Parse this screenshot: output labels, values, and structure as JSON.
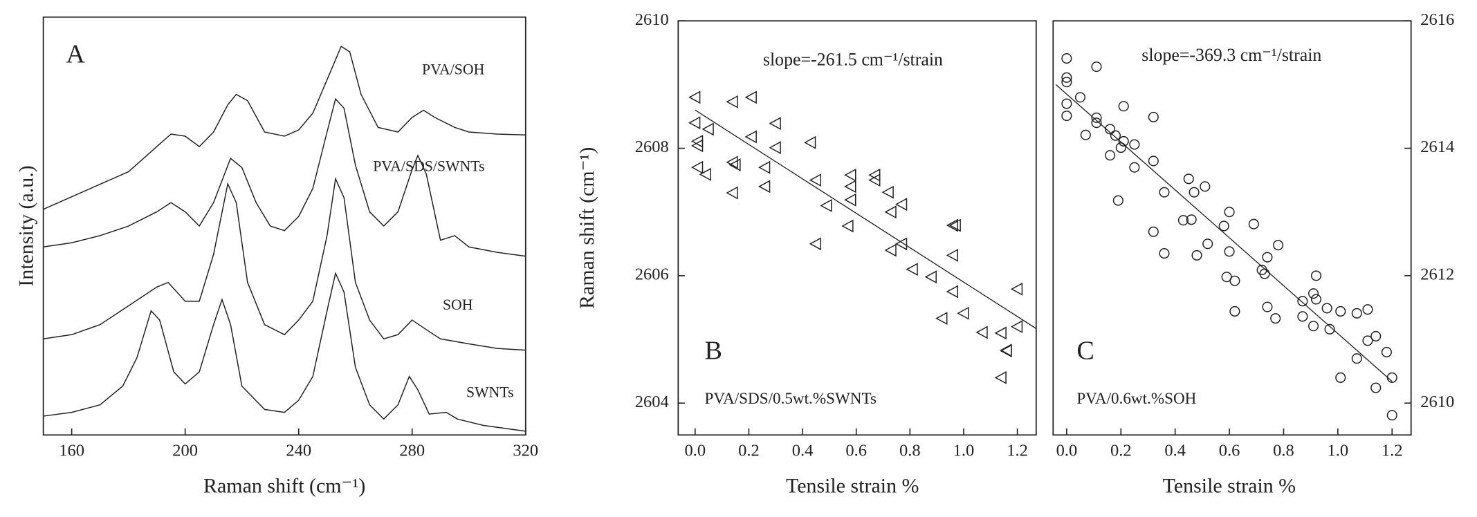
{
  "chart_data": [
    {
      "type": "line",
      "panel_label": "A",
      "xlabel": "Raman shift (cm⁻¹)",
      "ylabel": "Intensity (a.u.)",
      "xlim": [
        150,
        320
      ],
      "xticks": [
        160,
        200,
        240,
        280,
        320
      ],
      "ylim": [
        0,
        100
      ],
      "color": "#222222",
      "series": [
        {
          "name": "PVA/SOH",
          "x": [
            150,
            160,
            170,
            180,
            190,
            195,
            200,
            205,
            210,
            215,
            218,
            222,
            228,
            235,
            240,
            245,
            250,
            255,
            258,
            262,
            268,
            275,
            280,
            284,
            288,
            295,
            300,
            310,
            320
          ],
          "values": [
            54,
            57,
            60,
            63,
            69,
            72,
            71.5,
            69,
            72.5,
            79,
            81.5,
            80,
            72.5,
            71.5,
            73,
            77,
            85,
            93,
            91.7,
            81.5,
            73.6,
            72.5,
            76,
            77.7,
            76,
            73.6,
            72.5,
            72,
            71.8
          ]
        },
        {
          "name": "PVA/SDS/SWNTs",
          "x": [
            150,
            160,
            170,
            180,
            190,
            195,
            200,
            205,
            210,
            216,
            220,
            225,
            230,
            235,
            240,
            245,
            250,
            253,
            256,
            260,
            265,
            270,
            275,
            280,
            282,
            285,
            290,
            295,
            300,
            310,
            320
          ],
          "values": [
            45,
            46,
            47.7,
            50,
            53.4,
            55.6,
            53.4,
            50,
            55.6,
            66.2,
            64,
            55.6,
            50,
            48.9,
            52.3,
            59,
            72.5,
            80.4,
            78.2,
            64.6,
            53.4,
            50,
            53.4,
            63.5,
            66.9,
            62.4,
            46.6,
            47.7,
            45,
            43.7,
            42.8
          ]
        },
        {
          "name": "SOH",
          "x": [
            150,
            160,
            170,
            180,
            190,
            194,
            200,
            205,
            210,
            215,
            218,
            222,
            228,
            235,
            240,
            245,
            250,
            253,
            256,
            260,
            265,
            270,
            275,
            280,
            285,
            290,
            300,
            310,
            320
          ],
          "values": [
            23,
            24,
            26.4,
            30.9,
            35.4,
            36.5,
            32,
            32,
            43.2,
            60.1,
            55.6,
            36.5,
            26.4,
            24,
            27.5,
            32,
            47.7,
            61.3,
            56.8,
            36.5,
            27.5,
            23,
            24,
            27.5,
            25.2,
            23,
            21.8,
            20.7,
            20.3
          ]
        },
        {
          "name": "SWNTs",
          "x": [
            150,
            160,
            170,
            178,
            183,
            188,
            191,
            196,
            200,
            205,
            210,
            213,
            216,
            220,
            228,
            235,
            240,
            245,
            250,
            253,
            256,
            260,
            265,
            270,
            275,
            279,
            282,
            286,
            292,
            296,
            305,
            320
          ],
          "values": [
            4.5,
            5.4,
            7.2,
            11.7,
            18.5,
            29.7,
            27.5,
            15.1,
            12.2,
            15.1,
            26.4,
            32.4,
            26.4,
            11.7,
            6.1,
            5.4,
            8.3,
            14,
            29.7,
            38.7,
            34.2,
            16.2,
            7.2,
            3.8,
            7.2,
            14,
            10.8,
            5,
            5.4,
            3.8,
            2.3,
            0.9
          ]
        }
      ]
    },
    {
      "type": "scatter",
      "panel_label": "B",
      "sample": "PVA/SDS/0.5wt.%SWNTs",
      "slope": "slope=-261.5 cm⁻¹/strain",
      "xlabel": "Tensile strain %",
      "ylabel": "Raman shift (cm⁻¹)",
      "marker": "triangle",
      "color": "#222222",
      "yaxis_side": "left",
      "xlim": [
        -0.063,
        1.27
      ],
      "xticks": [
        {
          "value": 0,
          "label": "0.0"
        },
        0.2,
        0.4,
        0.6,
        0.8,
        {
          "value": 1,
          "label": "1.0"
        },
        1.2
      ],
      "ylim": [
        2603.5,
        2610
      ],
      "yticks": [
        2604,
        2606,
        2608,
        2610
      ],
      "x": [
        0,
        0,
        0.01,
        0.01,
        0.01,
        0.04,
        0.05,
        0.14,
        0.21,
        0.14,
        0.15,
        0.14,
        0.21,
        0.26,
        0.26,
        0.3,
        0.3,
        0.43,
        0.45,
        0.45,
        0.49,
        0.58,
        0.58,
        0.58,
        0.57,
        0.67,
        0.67,
        0.72,
        0.73,
        0.73,
        0.77,
        0.77,
        0.81,
        0.88,
        0.92,
        0.96,
        0.96,
        0.97,
        0.96,
        1,
        1.07,
        1.14,
        1.14,
        1.16,
        1.16,
        1.2,
        1.2
      ],
      "values": [
        2608.8,
        2608.4,
        2608.11,
        2608.04,
        2607.7,
        2607.59,
        2608.3,
        2608.73,
        2608.8,
        2607.78,
        2607.74,
        2607.3,
        2608.18,
        2607.7,
        2607.4,
        2608.39,
        2608.01,
        2608.09,
        2607.5,
        2606.5,
        2607.1,
        2607.58,
        2607.4,
        2607.19,
        2606.78,
        2607.58,
        2607.5,
        2607.31,
        2606.4,
        2607,
        2607.12,
        2606.5,
        2606.1,
        2605.98,
        2605.33,
        2606.79,
        2606.32,
        2606.79,
        2605.75,
        2605.41,
        2605.11,
        2605.1,
        2604.4,
        2604.83,
        2604.82,
        2605.79,
        2605.2
      ],
      "fit_line": {
        "x": [
          0,
          1.27
        ],
        "y": [
          2608.6,
          2605.17
        ]
      }
    },
    {
      "type": "scatter",
      "panel_label": "C",
      "sample": "PVA/0.6wt.%SOH",
      "slope": "slope=-369.3 cm⁻¹/strain",
      "xlabel": "Tensile strain %",
      "marker": "circle",
      "color": "#222222",
      "yaxis_side": "right",
      "xlim": [
        -0.05,
        1.27
      ],
      "xticks": [
        {
          "value": 0,
          "label": "0.0"
        },
        0.2,
        0.4,
        0.6,
        0.8,
        {
          "value": 1,
          "label": "1.0"
        },
        1.2
      ],
      "ylim": [
        2609.5,
        2616
      ],
      "yticks": [
        2610,
        2612,
        2614,
        2616
      ],
      "x": [
        0,
        0,
        0,
        0,
        0,
        0.05,
        0.07,
        0.11,
        0.11,
        0.11,
        0.16,
        0.16,
        0.18,
        0.19,
        0.2,
        0.21,
        0.21,
        0.25,
        0.25,
        0.32,
        0.32,
        0.32,
        0.36,
        0.36,
        0.43,
        0.45,
        0.46,
        0.47,
        0.48,
        0.51,
        0.52,
        0.58,
        0.59,
        0.6,
        0.6,
        0.62,
        0.62,
        0.69,
        0.72,
        0.73,
        0.74,
        0.74,
        0.77,
        0.78,
        0.87,
        0.87,
        0.91,
        0.91,
        0.92,
        0.92,
        0.96,
        0.97,
        1.01,
        1.01,
        1.07,
        1.07,
        1.11,
        1.11,
        1.14,
        1.14,
        1.18,
        1.2,
        1.2
      ],
      "values": [
        2615.41,
        2615.11,
        2615.04,
        2614.7,
        2614.51,
        2614.8,
        2614.21,
        2615.28,
        2614.48,
        2614.4,
        2614.3,
        2613.89,
        2614.2,
        2613.18,
        2614.01,
        2614.66,
        2614.11,
        2614.06,
        2613.7,
        2614.49,
        2613.8,
        2612.69,
        2613.31,
        2612.35,
        2612.87,
        2613.52,
        2612.88,
        2613.31,
        2612.32,
        2613.4,
        2612.5,
        2612.78,
        2611.98,
        2613,
        2612.38,
        2611.92,
        2611.44,
        2612.81,
        2612.09,
        2612.03,
        2612.29,
        2611.51,
        2611.33,
        2612.48,
        2611.6,
        2611.36,
        2611.72,
        2611.21,
        2612,
        2611.63,
        2611.49,
        2611.16,
        2611.44,
        2610.4,
        2611.41,
        2610.7,
        2611.47,
        2610.98,
        2611.05,
        2610.24,
        2610.8,
        2610.4,
        2609.81
      ],
      "fit_line": {
        "x": [
          -0.04,
          1.2
        ],
        "y": [
          2615,
          2610.34
        ]
      }
    }
  ]
}
